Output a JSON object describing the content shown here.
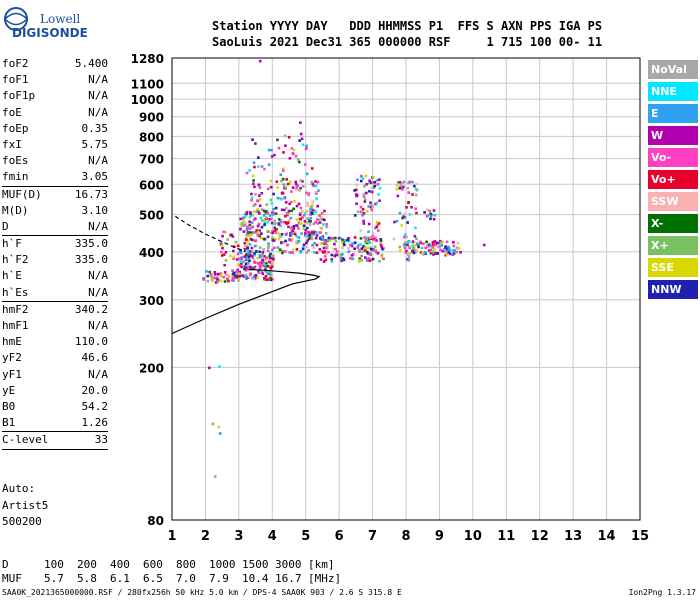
{
  "logo": {
    "line1": "Lowell",
    "line2": "DIGISONDE"
  },
  "header": {
    "line1": "Station YYYY DAY   DDD HHMMSS P1  FFS S AXN PPS IGA PS",
    "line2": "SaoLuis 2021 Dec31 365 000000 RSF     1 715 100 00- 11"
  },
  "params": [
    {
      "name": "foF2",
      "value": "5.400"
    },
    {
      "name": "foF1",
      "value": "N/A"
    },
    {
      "name": "foF1p",
      "value": "N/A"
    },
    {
      "name": "foE",
      "value": "N/A"
    },
    {
      "name": "foEp",
      "value": "0.35"
    },
    {
      "name": "fxI",
      "value": "5.75"
    },
    {
      "name": "foEs",
      "value": "N/A"
    },
    {
      "name": "fmin",
      "value": "3.05",
      "sep": true
    },
    {
      "name": "MUF(D)",
      "value": "16.73"
    },
    {
      "name": "M(D)",
      "value": "3.10"
    },
    {
      "name": "D",
      "value": "N/A",
      "sep": true
    },
    {
      "name": "h`F",
      "value": "335.0"
    },
    {
      "name": "h`F2",
      "value": "335.0"
    },
    {
      "name": "h`E",
      "value": "N/A"
    },
    {
      "name": "h`Es",
      "value": "N/A",
      "sep": true
    },
    {
      "name": "hmF2",
      "value": "340.2"
    },
    {
      "name": "hmF1",
      "value": "N/A"
    },
    {
      "name": "hmE",
      "value": "110.0"
    },
    {
      "name": "yF2",
      "value": "46.6"
    },
    {
      "name": "yF1",
      "value": "N/A"
    },
    {
      "name": "yE",
      "value": "20.0"
    },
    {
      "name": "B0",
      "value": "54.2"
    },
    {
      "name": "B1",
      "value": "1.26",
      "sep": true
    },
    {
      "name": "C-level",
      "value": "33",
      "sep": true
    }
  ],
  "auto": {
    "line1": "Auto:",
    "line2": "Artist5",
    "line3": "500200"
  },
  "legend": [
    {
      "label": "NoVal",
      "color": "#a8a8a8"
    },
    {
      "label": "NNE",
      "color": "#00e8ff"
    },
    {
      "label": "E",
      "color": "#30a0f0"
    },
    {
      "label": "W",
      "color": "#b000b0"
    },
    {
      "label": "Vo-",
      "color": "#ff40c0"
    },
    {
      "label": "Vo+",
      "color": "#e8002a"
    },
    {
      "label": "SSW",
      "color": "#f8b0b0"
    },
    {
      "label": "X-",
      "color": "#007000"
    },
    {
      "label": "X+",
      "color": "#78c060"
    },
    {
      "label": "SSE",
      "color": "#d8d800"
    },
    {
      "label": "NNW",
      "color": "#2020b0"
    }
  ],
  "muf": {
    "d_label": "D",
    "d_values": [
      "100",
      "200",
      "400",
      "600",
      "800",
      "1000",
      "1500",
      "3000",
      "[km]"
    ],
    "m_label": "MUF",
    "m_values": [
      "5.7",
      "5.8",
      "6.1",
      "6.5",
      "7.0",
      "7.9",
      "10.4",
      "16.7",
      "[MHz]"
    ]
  },
  "footer": {
    "left": "SAA0K_2021365000000.RSF / 280fx256h 50 kHz 5.0 km / DPS-4 SAA0K 903 / 2.6 S 315.8 E",
    "right": "Ion2Png 1.3.17"
  },
  "chart_data": {
    "type": "scatter",
    "x_range": [
      1,
      15
    ],
    "y_range": [
      80,
      1280
    ],
    "x_ticks": [
      "1",
      "2",
      "3",
      "4",
      "5",
      "6",
      "7",
      "8",
      "9",
      "10",
      "11",
      "12",
      "13",
      "14",
      "15"
    ],
    "y_ticks": [
      {
        "v": 80,
        "label": "80"
      },
      {
        "v": 200,
        "label": "200"
      },
      {
        "v": 300,
        "label": "300"
      },
      {
        "v": 400,
        "label": "400"
      },
      {
        "v": 500,
        "label": "500"
      },
      {
        "v": 600,
        "label": "600"
      },
      {
        "v": 700,
        "label": "700"
      },
      {
        "v": 800,
        "label": "800"
      },
      {
        "v": 900,
        "label": "900"
      },
      {
        "v": 1000,
        "label": "1000"
      },
      {
        "v": 1100,
        "label": "1100"
      },
      {
        "v": 1280,
        "label": "1280"
      }
    ],
    "grid": true,
    "echo_clusters": [
      {
        "x": [
          1.9,
          3.0
        ],
        "y": [
          335,
          360
        ],
        "dens": 55
      },
      {
        "x": [
          2.9,
          4.0
        ],
        "y": [
          340,
          400
        ],
        "dens": 160
      },
      {
        "x": [
          3.0,
          5.6
        ],
        "y": [
          400,
          520
        ],
        "dens": 320
      },
      {
        "x": [
          3.3,
          5.4
        ],
        "y": [
          520,
          620
        ],
        "dens": 90
      },
      {
        "x": [
          3.2,
          5.2
        ],
        "y": [
          620,
          820
        ],
        "dens": 45
      },
      {
        "x": [
          5.4,
          7.3
        ],
        "y": [
          380,
          440
        ],
        "dens": 150
      },
      {
        "x": [
          6.4,
          7.2
        ],
        "y": [
          440,
          640
        ],
        "dens": 70
      },
      {
        "x": [
          7.6,
          8.3
        ],
        "y": [
          380,
          620
        ],
        "dens": 60
      },
      {
        "x": [
          7.9,
          9.6
        ],
        "y": [
          395,
          430
        ],
        "dens": 110
      },
      {
        "x": [
          8.5,
          9.0
        ],
        "y": [
          490,
          520
        ],
        "dens": 12
      },
      {
        "x": [
          2.4,
          3.3
        ],
        "y": [
          360,
          460
        ],
        "dens": 40
      },
      {
        "x": [
          1.8,
          2.6
        ],
        "y": [
          100,
          250
        ],
        "dens": 6
      }
    ],
    "isolated_points": [
      {
        "x": 3.6,
        "y": 1266
      },
      {
        "x": 4.8,
        "y": 875
      },
      {
        "x": 10.3,
        "y": 420
      }
    ],
    "profile_solid": [
      [
        1.0,
        245
      ],
      [
        2.0,
        268
      ],
      [
        3.0,
        292
      ],
      [
        4.0,
        315
      ],
      [
        4.6,
        330
      ],
      [
        5.3,
        340
      ],
      [
        5.4,
        345
      ],
      [
        5.2,
        348
      ],
      [
        4.8,
        352
      ],
      [
        4.3,
        355
      ],
      [
        3.8,
        358
      ],
      [
        3.3,
        360
      ]
    ],
    "profile_dashed": [
      [
        1.1,
        495
      ],
      [
        1.5,
        470
      ],
      [
        2.0,
        445
      ],
      [
        2.5,
        425
      ],
      [
        2.9,
        410
      ],
      [
        3.2,
        400
      ]
    ]
  }
}
